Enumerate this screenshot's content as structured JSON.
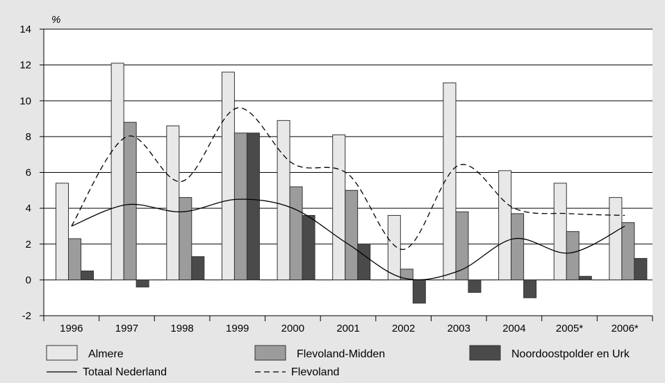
{
  "chart_data": {
    "type": "bar",
    "ylabel": "%",
    "ylim": [
      -2,
      14
    ],
    "yticks": [
      -2,
      0,
      2,
      4,
      6,
      8,
      10,
      12,
      14
    ],
    "grid": true,
    "legend_position": "bottom",
    "categories": [
      "1996",
      "1997",
      "1998",
      "1999",
      "2000",
      "2001",
      "2002",
      "2003",
      "2004",
      "2005*",
      "2006*"
    ],
    "series": [
      {
        "name": "Almere",
        "kind": "bar",
        "color": "#e8e8e8",
        "values": [
          5.4,
          12.1,
          8.6,
          11.6,
          8.9,
          8.1,
          3.6,
          11.0,
          6.1,
          5.4,
          4.6
        ]
      },
      {
        "name": "Flevoland-Midden",
        "kind": "bar",
        "color": "#9c9c9c",
        "values": [
          2.3,
          8.8,
          4.6,
          8.2,
          5.2,
          5.0,
          0.6,
          3.8,
          3.7,
          2.7,
          3.2
        ]
      },
      {
        "name": "Noordoostpolder en Urk",
        "kind": "bar",
        "color": "#4a4a4a",
        "values": [
          0.5,
          -0.4,
          1.3,
          8.2,
          3.6,
          2.0,
          -1.3,
          -0.7,
          -1.0,
          0.2,
          1.2
        ]
      },
      {
        "name": "Totaal Nederland",
        "kind": "line",
        "dash": "solid",
        "values": [
          3.0,
          4.2,
          3.8,
          4.5,
          4.0,
          2.0,
          0.1,
          0.5,
          2.3,
          1.5,
          3.0
        ]
      },
      {
        "name": "Flevoland",
        "kind": "line",
        "dash": "dashed",
        "values": [
          3.0,
          8.0,
          5.5,
          9.6,
          6.5,
          5.9,
          1.7,
          6.4,
          4.0,
          3.7,
          3.6
        ]
      }
    ]
  }
}
